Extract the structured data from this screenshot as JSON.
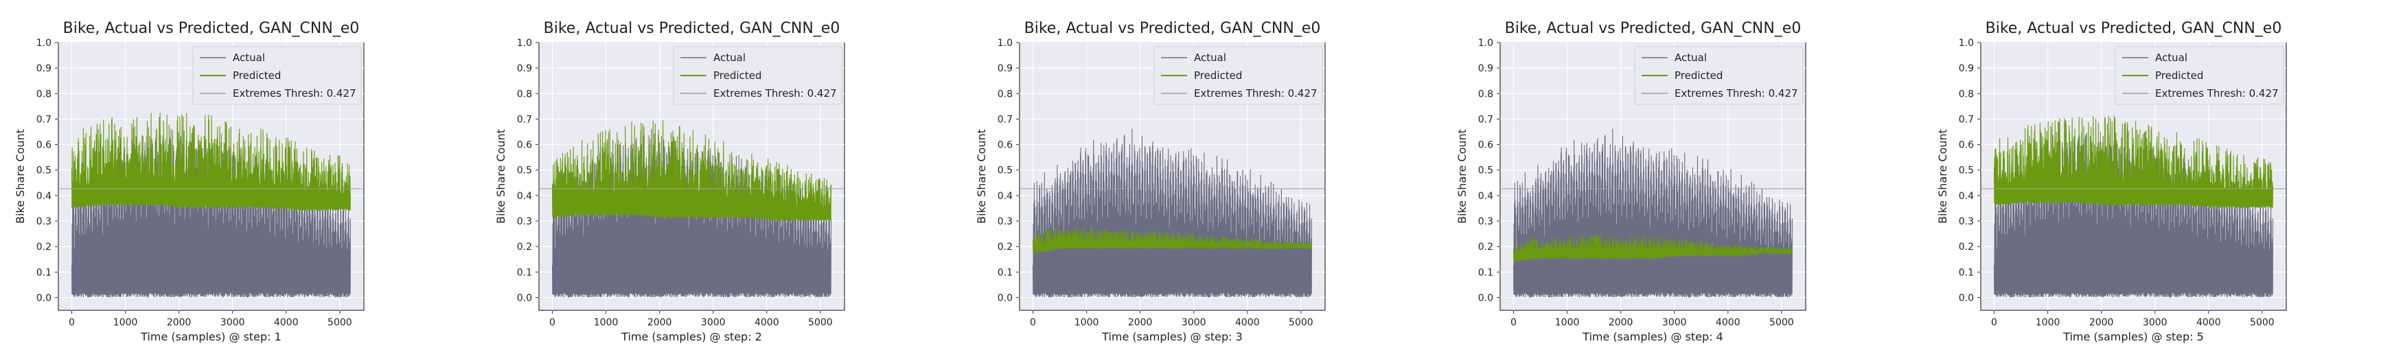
{
  "chart_data": [
    {
      "type": "line",
      "title": "Bike, Actual vs Predicted, GAN_CNN_e0",
      "xlabel": "Time (samples) @ step: 1",
      "ylabel": "Bike Share Count",
      "xlim": [
        -250,
        5450
      ],
      "ylim": [
        -0.05,
        1.0
      ],
      "xticks": [
        0,
        1000,
        2000,
        3000,
        4000,
        5000
      ],
      "yticks": [
        0.0,
        0.1,
        0.2,
        0.3,
        0.4,
        0.5,
        0.6,
        0.7,
        0.8,
        0.9,
        1.0
      ],
      "grid": true,
      "legend_position": "top-right",
      "series": [
        {
          "name": "Actual",
          "color": "#6b6e82",
          "x_range": [
            0,
            5200
          ],
          "envelope_low": 0.0,
          "envelope_high": [
            0.45,
            0.55,
            0.62,
            0.68,
            0.66,
            0.62,
            0.58,
            0.55,
            0.5,
            0.44,
            0.38
          ]
        },
        {
          "name": "Predicted",
          "color": "#6a9a10",
          "x_range": [
            0,
            5200
          ],
          "base": [
            0.36,
            0.37,
            0.37,
            0.37,
            0.36,
            0.36,
            0.36,
            0.36,
            0.35,
            0.35,
            0.35
          ],
          "peak": [
            0.64,
            0.7,
            0.72,
            0.74,
            0.74,
            0.72,
            0.68,
            0.66,
            0.62,
            0.58,
            0.55
          ]
        },
        {
          "name": "Extremes Thresh: 0.427",
          "color": "#a0a0a0",
          "value": 0.427
        }
      ]
    },
    {
      "type": "line",
      "title": "Bike, Actual vs Predicted, GAN_CNN_e0",
      "xlabel": "Time (samples) @ step: 2",
      "ylabel": "Bike Share Count",
      "xlim": [
        -250,
        5450
      ],
      "ylim": [
        -0.05,
        1.0
      ],
      "xticks": [
        0,
        1000,
        2000,
        3000,
        4000,
        5000
      ],
      "yticks": [
        0.0,
        0.1,
        0.2,
        0.3,
        0.4,
        0.5,
        0.6,
        0.7,
        0.8,
        0.9,
        1.0
      ],
      "grid": true,
      "legend_position": "top-right",
      "series": [
        {
          "name": "Actual",
          "color": "#6b6e82",
          "x_range": [
            0,
            5200
          ],
          "envelope_low": 0.0,
          "envelope_high": [
            0.45,
            0.55,
            0.62,
            0.68,
            0.66,
            0.62,
            0.58,
            0.55,
            0.5,
            0.44,
            0.38
          ]
        },
        {
          "name": "Predicted",
          "color": "#6a9a10",
          "x_range": [
            0,
            5200
          ],
          "base": [
            0.32,
            0.33,
            0.33,
            0.33,
            0.32,
            0.32,
            0.32,
            0.32,
            0.31,
            0.31,
            0.31
          ],
          "peak": [
            0.55,
            0.62,
            0.66,
            0.7,
            0.7,
            0.66,
            0.62,
            0.58,
            0.54,
            0.5,
            0.46
          ]
        },
        {
          "name": "Extremes Thresh: 0.427",
          "color": "#a0a0a0",
          "value": 0.427
        }
      ]
    },
    {
      "type": "line",
      "title": "Bike, Actual vs Predicted, GAN_CNN_e0",
      "xlabel": "Time (samples) @ step: 3",
      "ylabel": "Bike Share Count",
      "xlim": [
        -250,
        5450
      ],
      "ylim": [
        -0.05,
        1.0
      ],
      "xticks": [
        0,
        1000,
        2000,
        3000,
        4000,
        5000
      ],
      "yticks": [
        0.0,
        0.1,
        0.2,
        0.3,
        0.4,
        0.5,
        0.6,
        0.7,
        0.8,
        0.9,
        1.0
      ],
      "grid": true,
      "legend_position": "top-right",
      "series": [
        {
          "name": "Actual",
          "color": "#6b6e82",
          "x_range": [
            0,
            5200
          ],
          "envelope_low": 0.0,
          "envelope_high": [
            0.45,
            0.55,
            0.62,
            0.68,
            0.66,
            0.62,
            0.58,
            0.55,
            0.5,
            0.44,
            0.38
          ]
        },
        {
          "name": "Predicted",
          "color": "#6a9a10",
          "x_range": [
            0,
            5200
          ],
          "base": [
            0.18,
            0.2,
            0.2,
            0.2,
            0.2,
            0.2,
            0.2,
            0.2,
            0.2,
            0.2,
            0.2
          ],
          "peak": [
            0.26,
            0.28,
            0.28,
            0.27,
            0.27,
            0.26,
            0.25,
            0.24,
            0.23,
            0.22,
            0.22
          ]
        },
        {
          "name": "Extremes Thresh: 0.427",
          "color": "#a0a0a0",
          "value": 0.427
        }
      ]
    },
    {
      "type": "line",
      "title": "Bike, Actual vs Predicted, GAN_CNN_e0",
      "xlabel": "Time (samples) @ step: 4",
      "ylabel": "Bike Share Count",
      "xlim": [
        -250,
        5450
      ],
      "ylim": [
        -0.05,
        1.0
      ],
      "xticks": [
        0,
        1000,
        2000,
        3000,
        4000,
        5000
      ],
      "yticks": [
        0.0,
        0.1,
        0.2,
        0.3,
        0.4,
        0.5,
        0.6,
        0.7,
        0.8,
        0.9,
        1.0
      ],
      "grid": true,
      "legend_position": "top-right",
      "series": [
        {
          "name": "Actual",
          "color": "#6b6e82",
          "x_range": [
            0,
            5200
          ],
          "envelope_low": 0.0,
          "envelope_high": [
            0.45,
            0.55,
            0.62,
            0.68,
            0.66,
            0.62,
            0.58,
            0.55,
            0.5,
            0.44,
            0.38
          ]
        },
        {
          "name": "Predicted",
          "color": "#6a9a10",
          "x_range": [
            0,
            5200
          ],
          "base": [
            0.15,
            0.16,
            0.16,
            0.16,
            0.16,
            0.16,
            0.17,
            0.17,
            0.17,
            0.18,
            0.18
          ],
          "peak": [
            0.22,
            0.24,
            0.25,
            0.25,
            0.25,
            0.24,
            0.23,
            0.22,
            0.21,
            0.2,
            0.2
          ]
        },
        {
          "name": "Extremes Thresh: 0.427",
          "color": "#a0a0a0",
          "value": 0.427
        }
      ]
    },
    {
      "type": "line",
      "title": "Bike, Actual vs Predicted, GAN_CNN_e0",
      "xlabel": "Time (samples) @ step: 5",
      "ylabel": "Bike Share Count",
      "xlim": [
        -250,
        5450
      ],
      "ylim": [
        -0.05,
        1.0
      ],
      "xticks": [
        0,
        1000,
        2000,
        3000,
        4000,
        5000
      ],
      "yticks": [
        0.0,
        0.1,
        0.2,
        0.3,
        0.4,
        0.5,
        0.6,
        0.7,
        0.8,
        0.9,
        1.0
      ],
      "grid": true,
      "legend_position": "top-right",
      "series": [
        {
          "name": "Actual",
          "color": "#6b6e82",
          "x_range": [
            0,
            5200
          ],
          "envelope_low": 0.0,
          "envelope_high": [
            0.45,
            0.55,
            0.62,
            0.68,
            0.66,
            0.62,
            0.58,
            0.55,
            0.5,
            0.44,
            0.38
          ]
        },
        {
          "name": "Predicted",
          "color": "#6a9a10",
          "x_range": [
            0,
            5200
          ],
          "base": [
            0.37,
            0.38,
            0.38,
            0.38,
            0.37,
            0.37,
            0.37,
            0.37,
            0.36,
            0.36,
            0.36
          ],
          "peak": [
            0.62,
            0.68,
            0.7,
            0.72,
            0.72,
            0.7,
            0.66,
            0.64,
            0.6,
            0.56,
            0.54
          ]
        },
        {
          "name": "Extremes Thresh: 0.427",
          "color": "#a0a0a0",
          "value": 0.427
        }
      ]
    }
  ]
}
